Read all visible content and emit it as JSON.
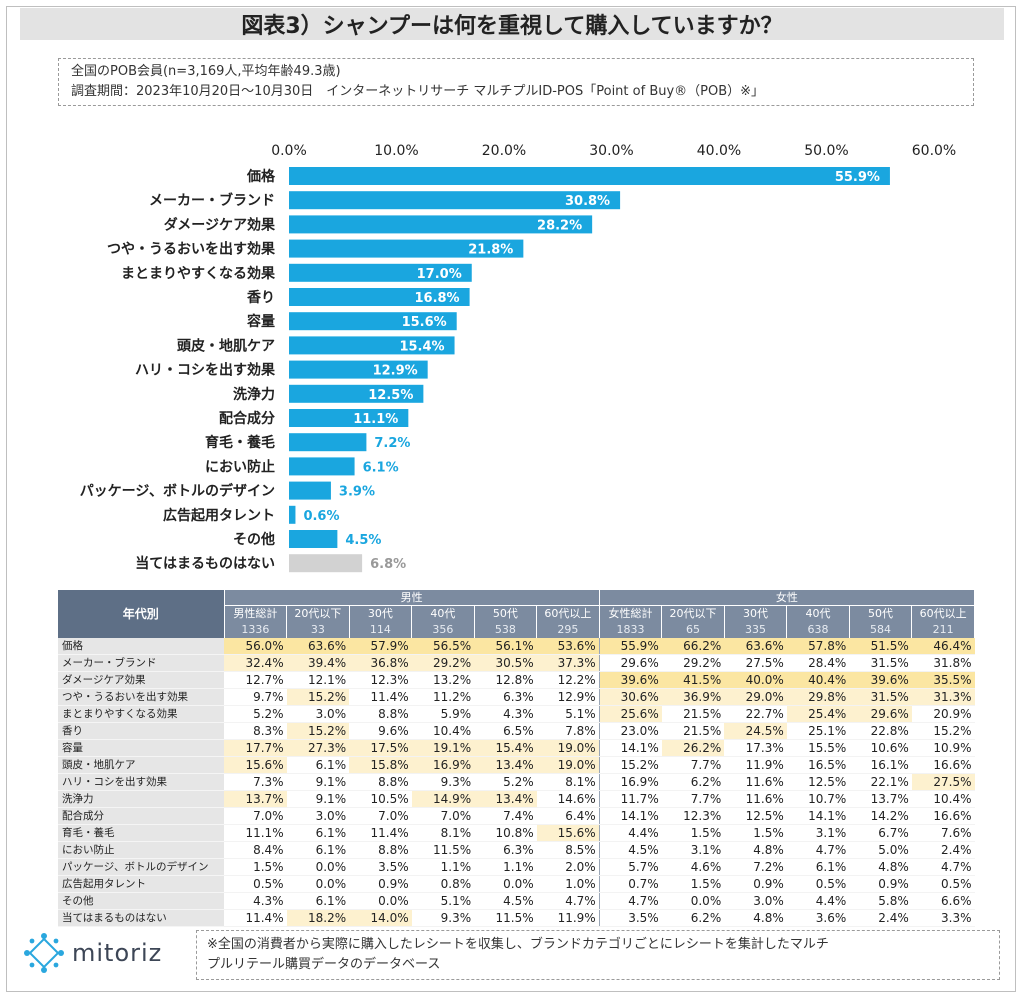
{
  "title": "図表3）シャンプーは何を重視して購入していますか？",
  "info": {
    "line1": "全国のPOB会員(n=3,169人,平均年齢49.3歳)",
    "line2": "調査期間：2023年10月20日〜10月30日　インターネットリサーチ マルチプルID-POS「Point of Buy®（POB）※」"
  },
  "colors": {
    "bar": "#1aa6df",
    "bar_other": "#d2d2d2",
    "label_other": "#999999",
    "header": "#7c8ba0",
    "highlight_strong": "#fbe6a2",
    "highlight_light": "#fdf1cf"
  },
  "chart_data": {
    "type": "bar",
    "orientation": "horizontal",
    "xlim": [
      0,
      60
    ],
    "x_tick_labels": [
      "0.0%",
      "10.0%",
      "20.0%",
      "30.0%",
      "40.0%",
      "50.0%",
      "60.0%"
    ],
    "categories": [
      "価格",
      "メーカー・ブランド",
      "ダメージケア効果",
      "つや・うるおいを出す効果",
      "まとまりやすくなる効果",
      "香り",
      "容量",
      "頭皮・地肌ケア",
      "ハリ・コシを出す効果",
      "洗浄力",
      "配合成分",
      "育毛・養毛",
      "におい防止",
      "パッケージ、ボトルのデザイン",
      "広告起用タレント",
      "その他",
      "当てはまるものはない"
    ],
    "values": [
      55.9,
      30.8,
      28.2,
      21.8,
      17.0,
      16.8,
      15.6,
      15.4,
      12.9,
      12.5,
      11.1,
      7.2,
      6.1,
      3.9,
      0.6,
      4.5,
      6.8
    ],
    "value_labels": [
      "55.9%",
      "30.8%",
      "28.2%",
      "21.8%",
      "17.0%",
      "16.8%",
      "15.6%",
      "15.4%",
      "12.9%",
      "12.5%",
      "11.1%",
      "7.2%",
      "6.1%",
      "3.9%",
      "0.6%",
      "4.5%",
      "6.8%"
    ],
    "grid": false,
    "legend": "none"
  },
  "table": {
    "corner": "年代別",
    "groups": [
      "男性",
      "女性"
    ],
    "columns": [
      "男性総計",
      "20代以下",
      "30代",
      "40代",
      "50代",
      "60代以上",
      "女性総計",
      "20代以下",
      "30代",
      "40代",
      "50代",
      "60代以上"
    ],
    "n": [
      "1336",
      "33",
      "114",
      "356",
      "538",
      "295",
      "1833",
      "65",
      "335",
      "638",
      "584",
      "211"
    ],
    "rows": [
      {
        "label": "価格",
        "values": [
          "56.0%",
          "63.6%",
          "57.9%",
          "56.5%",
          "56.1%",
          "53.6%",
          "55.9%",
          "66.2%",
          "63.6%",
          "57.8%",
          "51.5%",
          "46.4%"
        ],
        "hl": [
          1,
          1,
          1,
          1,
          1,
          1,
          1,
          1,
          1,
          1,
          1,
          1
        ]
      },
      {
        "label": "メーカー・ブランド",
        "values": [
          "32.4%",
          "39.4%",
          "36.8%",
          "29.2%",
          "30.5%",
          "37.3%",
          "29.6%",
          "29.2%",
          "27.5%",
          "28.4%",
          "31.5%",
          "31.8%"
        ],
        "hl": [
          2,
          2,
          2,
          2,
          2,
          2,
          0,
          0,
          0,
          0,
          0,
          0
        ]
      },
      {
        "label": "ダメージケア効果",
        "values": [
          "12.7%",
          "12.1%",
          "12.3%",
          "13.2%",
          "12.8%",
          "12.2%",
          "39.6%",
          "41.5%",
          "40.0%",
          "40.4%",
          "39.6%",
          "35.5%"
        ],
        "hl": [
          0,
          0,
          0,
          0,
          0,
          0,
          1,
          1,
          1,
          1,
          1,
          1
        ]
      },
      {
        "label": "つや・うるおいを出す効果",
        "values": [
          "9.7%",
          "15.2%",
          "11.4%",
          "11.2%",
          "6.3%",
          "12.9%",
          "30.6%",
          "36.9%",
          "29.0%",
          "29.8%",
          "31.5%",
          "31.3%"
        ],
        "hl": [
          0,
          2,
          0,
          0,
          0,
          0,
          2,
          2,
          2,
          2,
          2,
          2
        ]
      },
      {
        "label": "まとまりやすくなる効果",
        "values": [
          "5.2%",
          "3.0%",
          "8.8%",
          "5.9%",
          "4.3%",
          "5.1%",
          "25.6%",
          "21.5%",
          "22.7%",
          "25.4%",
          "29.6%",
          "20.9%"
        ],
        "hl": [
          0,
          0,
          0,
          0,
          0,
          0,
          2,
          0,
          0,
          2,
          2,
          0
        ]
      },
      {
        "label": "香り",
        "values": [
          "8.3%",
          "15.2%",
          "9.6%",
          "10.4%",
          "6.5%",
          "7.8%",
          "23.0%",
          "21.5%",
          "24.5%",
          "25.1%",
          "22.8%",
          "15.2%"
        ],
        "hl": [
          0,
          2,
          0,
          0,
          0,
          0,
          0,
          0,
          2,
          0,
          0,
          0
        ]
      },
      {
        "label": "容量",
        "values": [
          "17.7%",
          "27.3%",
          "17.5%",
          "19.1%",
          "15.4%",
          "19.0%",
          "14.1%",
          "26.2%",
          "17.3%",
          "15.5%",
          "10.6%",
          "10.9%"
        ],
        "hl": [
          2,
          2,
          2,
          2,
          2,
          2,
          0,
          2,
          0,
          0,
          0,
          0
        ]
      },
      {
        "label": "頭皮・地肌ケア",
        "values": [
          "15.6%",
          "6.1%",
          "15.8%",
          "16.9%",
          "13.4%",
          "19.0%",
          "15.2%",
          "7.7%",
          "11.9%",
          "16.5%",
          "16.1%",
          "16.6%"
        ],
        "hl": [
          2,
          0,
          2,
          2,
          2,
          2,
          0,
          0,
          0,
          0,
          0,
          0
        ]
      },
      {
        "label": "ハリ・コシを出す効果",
        "values": [
          "7.3%",
          "9.1%",
          "8.8%",
          "9.3%",
          "5.2%",
          "8.1%",
          "16.9%",
          "6.2%",
          "11.6%",
          "12.5%",
          "22.1%",
          "27.5%"
        ],
        "hl": [
          0,
          0,
          0,
          0,
          0,
          0,
          0,
          0,
          0,
          0,
          0,
          2
        ]
      },
      {
        "label": "洗浄力",
        "values": [
          "13.7%",
          "9.1%",
          "10.5%",
          "14.9%",
          "13.4%",
          "14.6%",
          "11.7%",
          "7.7%",
          "11.6%",
          "10.7%",
          "13.7%",
          "10.4%"
        ],
        "hl": [
          2,
          0,
          0,
          2,
          2,
          0,
          0,
          0,
          0,
          0,
          0,
          0
        ]
      },
      {
        "label": "配合成分",
        "values": [
          "7.0%",
          "3.0%",
          "7.0%",
          "7.0%",
          "7.4%",
          "6.4%",
          "14.1%",
          "12.3%",
          "12.5%",
          "14.1%",
          "14.2%",
          "16.6%"
        ],
        "hl": [
          0,
          0,
          0,
          0,
          0,
          0,
          0,
          0,
          0,
          0,
          0,
          0
        ]
      },
      {
        "label": "育毛・養毛",
        "values": [
          "11.1%",
          "6.1%",
          "11.4%",
          "8.1%",
          "10.8%",
          "15.6%",
          "4.4%",
          "1.5%",
          "1.5%",
          "3.1%",
          "6.7%",
          "7.6%"
        ],
        "hl": [
          0,
          0,
          0,
          0,
          0,
          2,
          0,
          0,
          0,
          0,
          0,
          0
        ]
      },
      {
        "label": "におい防止",
        "values": [
          "8.4%",
          "6.1%",
          "8.8%",
          "11.5%",
          "6.3%",
          "8.5%",
          "4.5%",
          "3.1%",
          "4.8%",
          "4.7%",
          "5.0%",
          "2.4%"
        ],
        "hl": [
          0,
          0,
          0,
          0,
          0,
          0,
          0,
          0,
          0,
          0,
          0,
          0
        ]
      },
      {
        "label": "パッケージ、ボトルのデザイン",
        "values": [
          "1.5%",
          "0.0%",
          "3.5%",
          "1.1%",
          "1.1%",
          "2.0%",
          "5.7%",
          "4.6%",
          "7.2%",
          "6.1%",
          "4.8%",
          "4.7%"
        ],
        "hl": [
          0,
          0,
          0,
          0,
          0,
          0,
          0,
          0,
          0,
          0,
          0,
          0
        ]
      },
      {
        "label": "広告起用タレント",
        "values": [
          "0.5%",
          "0.0%",
          "0.9%",
          "0.8%",
          "0.0%",
          "1.0%",
          "0.7%",
          "1.5%",
          "0.9%",
          "0.5%",
          "0.9%",
          "0.5%"
        ],
        "hl": [
          0,
          0,
          0,
          0,
          0,
          0,
          0,
          0,
          0,
          0,
          0,
          0
        ]
      },
      {
        "label": "その他",
        "values": [
          "4.3%",
          "6.1%",
          "0.0%",
          "5.1%",
          "4.5%",
          "4.7%",
          "4.7%",
          "0.0%",
          "3.0%",
          "4.4%",
          "5.8%",
          "6.6%"
        ],
        "hl": [
          0,
          0,
          0,
          0,
          0,
          0,
          0,
          0,
          0,
          0,
          0,
          0
        ]
      },
      {
        "label": "当てはまるものはない",
        "values": [
          "11.4%",
          "18.2%",
          "14.0%",
          "9.3%",
          "11.5%",
          "11.9%",
          "3.5%",
          "6.2%",
          "4.8%",
          "3.6%",
          "2.4%",
          "3.3%"
        ],
        "hl": [
          0,
          2,
          2,
          0,
          0,
          0,
          0,
          0,
          0,
          0,
          0,
          0
        ]
      }
    ]
  },
  "logo": {
    "text": "mitoriz",
    "icon": "mitoriz-logo-icon"
  },
  "note": {
    "line1": "※全国の消費者から実際に購入したレシートを収集し、ブランドカテゴリごとにレシートを集計したマルチ",
    "line2": "プルリテール購買データのデータベース"
  }
}
